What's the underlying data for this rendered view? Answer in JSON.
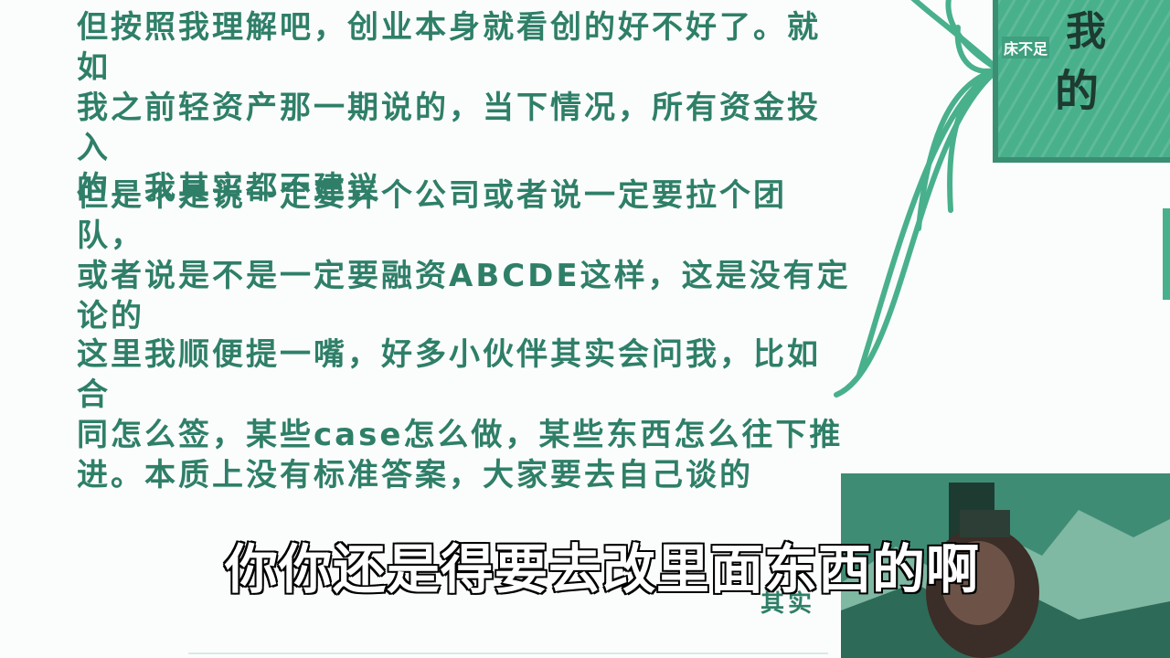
{
  "notes": [
    "但按照我理解吧，创业本身就看创的好不好了。就如\n我之前轻资产那一期说的，当下情况，所有资金投入\n的，我其实都不建议",
    "但是不是说一定要弄个公司或者说一定要拉个团队，\n或者说是不是一定要融资ABCDE这样，这是没有定\n论的",
    "这里我顺便提一嘴，好多小伙伴其实会问我，比如合\n同怎么签，某些case怎么做，某些东西怎么往下推\n进。本质上没有标准答案，大家要去自己谈的"
  ],
  "mind_map": {
    "card_small_text": "床不足",
    "card_top_text": "我",
    "card_big_text": "的",
    "accent_color": "#49b08c",
    "text_color": "#2f7f68"
  },
  "subtitle": {
    "main": "你你还是得要去改里面东西的啊",
    "partial_underlying": "其实"
  }
}
